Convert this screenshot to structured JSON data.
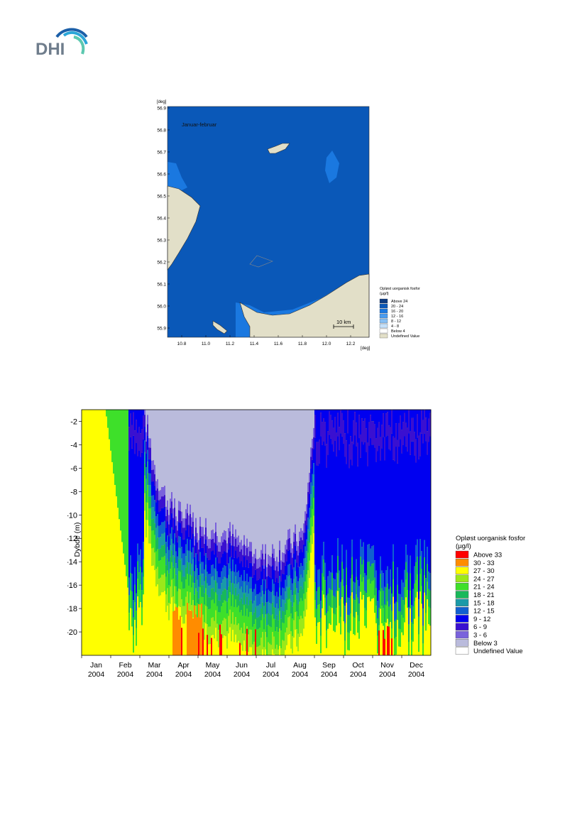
{
  "logo": {
    "text": "DHI",
    "colors": {
      "text": "#6f7d8c",
      "wave1": "#1b5fa8",
      "wave2": "#2aa6d8",
      "wave3": "#5cc8b0"
    }
  },
  "map": {
    "unit_y": "[deg]",
    "unit_x": "[deg]",
    "period_label": "Januar-februar",
    "x_ticks": [
      "10.8",
      "11.0",
      "11.2",
      "11.4",
      "11.6",
      "11.8",
      "12.0",
      "12.2"
    ],
    "y_ticks": [
      "56.9",
      "56.8",
      "56.7",
      "56.6",
      "56.5",
      "56.4",
      "56.3",
      "56.2",
      "56.1",
      "56.0",
      "55.9"
    ],
    "scale_bar": "10 km",
    "legend": {
      "title": [
        "Opløst uorganisk fosfor",
        "(µg/l)"
      ],
      "entries": [
        {
          "label": "Above 24",
          "color": "#0c3a80"
        },
        {
          "label": "20 - 24",
          "color": "#0a58b8"
        },
        {
          "label": "16 - 20",
          "color": "#1a78e0"
        },
        {
          "label": "12 - 16",
          "color": "#4a9cf0"
        },
        {
          "label": "8 - 12",
          "color": "#86bff4"
        },
        {
          "label": "4 - 8",
          "color": "#c4e0fa"
        },
        {
          "label": "Below 4",
          "color": "#ffffff"
        },
        {
          "label": "Undefined Value",
          "color": "#e2dfc8"
        }
      ]
    }
  },
  "chart_data": {
    "type": "heatmap",
    "ylabel": "Dybde (m)",
    "ylim": [
      -22,
      -1
    ],
    "y_ticks": [
      -2,
      -4,
      -6,
      -8,
      -10,
      -12,
      -14,
      -16,
      -18,
      -20
    ],
    "x_ticks": [
      {
        "month": "Jan",
        "year": "2004"
      },
      {
        "month": "Feb",
        "year": "2004"
      },
      {
        "month": "Mar",
        "year": "2004"
      },
      {
        "month": "Apr",
        "year": "2004"
      },
      {
        "month": "May",
        "year": "2004"
      },
      {
        "month": "Jun",
        "year": "2004"
      },
      {
        "month": "Jul",
        "year": "2004"
      },
      {
        "month": "Aug",
        "year": "2004"
      },
      {
        "month": "Sep",
        "year": "2004"
      },
      {
        "month": "Oct",
        "year": "2004"
      },
      {
        "month": "Nov",
        "year": "2004"
      },
      {
        "month": "Dec",
        "year": "2004"
      }
    ],
    "legend": {
      "title": [
        "Opløst uorganisk fosfor",
        "(µg/l)"
      ],
      "entries": [
        {
          "label": "Above 33",
          "color": "#ff0000"
        },
        {
          "label": "30 - 33",
          "color": "#ff8c00"
        },
        {
          "label": "27 - 30",
          "color": "#ffff00"
        },
        {
          "label": "24 - 27",
          "color": "#9be81a"
        },
        {
          "label": "21 - 24",
          "color": "#3ee02a"
        },
        {
          "label": "18 - 21",
          "color": "#18b85a"
        },
        {
          "label": "15 - 18",
          "color": "#1a9aa8"
        },
        {
          "label": "12 - 15",
          "color": "#1060d0"
        },
        {
          "label": "9 - 12",
          "color": "#0000f0"
        },
        {
          "label": "6 - 9",
          "color": "#3a10d0"
        },
        {
          "label": "3 - 6",
          "color": "#7a62dc"
        },
        {
          "label": "Below 3",
          "color": "#babbdc"
        },
        {
          "label": "Undefined Value",
          "color": "#ffffff"
        }
      ]
    },
    "surface_depth_profile": {
      "month_index": [
        0.0,
        0.3,
        0.6,
        0.9,
        1.2,
        1.5,
        1.8,
        2.0,
        2.2,
        2.5,
        2.8,
        3.0,
        3.2,
        3.5,
        3.8,
        4.0,
        4.3,
        4.6,
        5.0,
        5.3,
        5.6,
        6.0,
        6.3,
        6.6,
        7.0,
        7.3,
        7.6,
        8.0,
        8.4,
        8.8,
        9.2,
        9.6,
        10.0,
        10.4,
        10.8,
        11.2,
        11.5,
        12.0
      ],
      "depth_of_below3_bottom": [
        -1,
        -1,
        -1,
        -1,
        -1,
        -1,
        -1,
        -1,
        -2,
        -6,
        -8,
        -9,
        -9.5,
        -10,
        -10.5,
        -11,
        -11,
        -11.2,
        -11.5,
        -12,
        -12.5,
        -13,
        -13.5,
        -13,
        -12.5,
        -12,
        -11.5,
        -1,
        -1,
        -1,
        -1,
        -1,
        -1,
        -1,
        -1,
        -1,
        -1,
        -1
      ]
    }
  }
}
